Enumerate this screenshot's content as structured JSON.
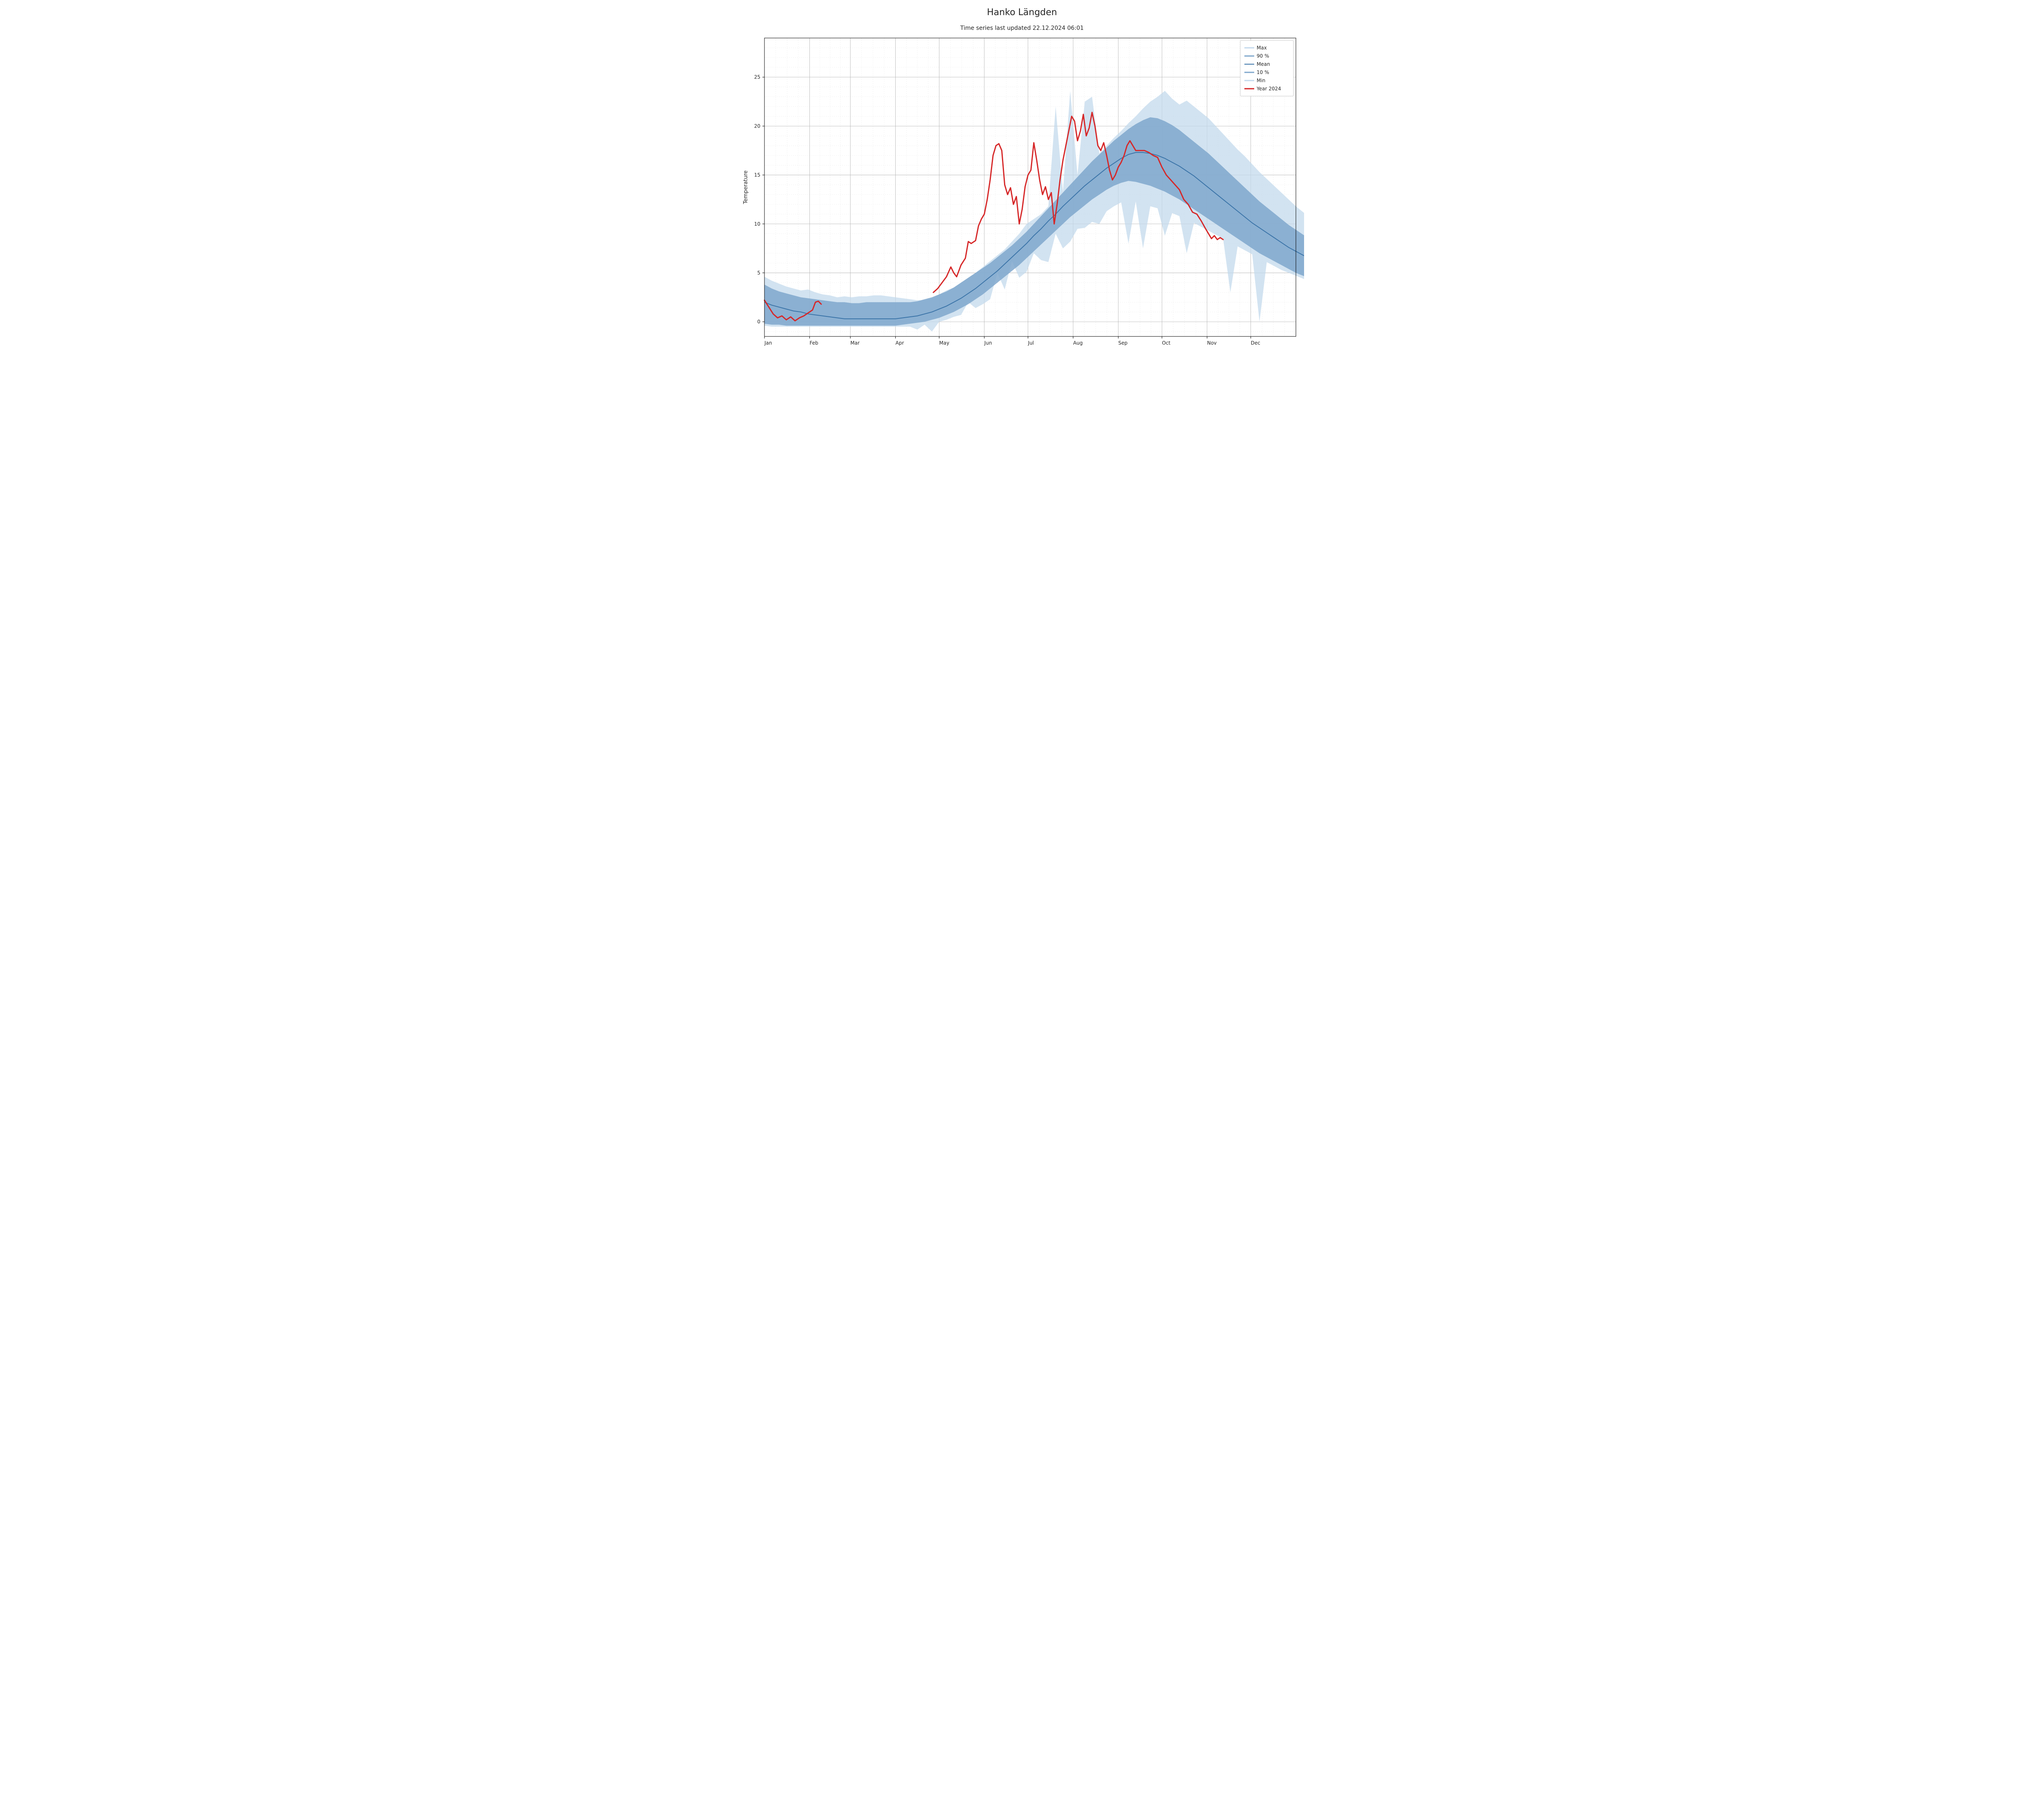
{
  "title": "Hanko Längden",
  "subtitle": "Time series last updated 22.12.2024 06:01",
  "ylabel": "Temperature",
  "chart": {
    "type": "line-with-bands",
    "background_color": "#ffffff",
    "grid": {
      "major_color": "#b0b0b0",
      "minor_color": "#e0e0e0",
      "major_width": 0.8,
      "minor_width": 0.5,
      "minor_dash": "2,3"
    },
    "axes": {
      "line_color": "#000000",
      "line_width": 1
    },
    "ylim": [
      -1.5,
      29
    ],
    "yticks_major": [
      0,
      5,
      10,
      15,
      20,
      25
    ],
    "yticks_minor_step": 1,
    "xlim": [
      0,
      365
    ],
    "xticks_major": [
      {
        "pos": 0,
        "label": "Jan"
      },
      {
        "pos": 31,
        "label": "Feb"
      },
      {
        "pos": 59,
        "label": "Mar"
      },
      {
        "pos": 90,
        "label": "Apr"
      },
      {
        "pos": 120,
        "label": "May"
      },
      {
        "pos": 151,
        "label": "Jun"
      },
      {
        "pos": 181,
        "label": "Jul"
      },
      {
        "pos": 212,
        "label": "Aug"
      },
      {
        "pos": 243,
        "label": "Sep"
      },
      {
        "pos": 273,
        "label": "Oct"
      },
      {
        "pos": 304,
        "label": "Nov"
      },
      {
        "pos": 334,
        "label": "Dec"
      }
    ],
    "legend": {
      "position": "upper-right",
      "items": [
        {
          "label": "Max",
          "color": "#c3d9ec",
          "kind": "fill"
        },
        {
          "label": "90 %",
          "color": "#7fa7cc",
          "kind": "fill"
        },
        {
          "label": "Mean",
          "color": "#3b74a8",
          "kind": "line",
          "width": 2
        },
        {
          "label": "10 %",
          "color": "#7fa7cc",
          "kind": "fill"
        },
        {
          "label": "Min",
          "color": "#c3d9ec",
          "kind": "fill"
        },
        {
          "label": "Year 2024",
          "color": "#d62728",
          "kind": "line",
          "width": 3
        }
      ]
    },
    "colors": {
      "fill_outer": "#c3d9ec",
      "fill_inner": "#7fa7cc",
      "mean_line": "#3b74a8",
      "year_line": "#d62728"
    },
    "series": {
      "x_step": 5,
      "max": [
        4.6,
        4.2,
        3.9,
        3.6,
        3.4,
        3.2,
        3.3,
        3.0,
        2.8,
        2.7,
        2.5,
        2.6,
        2.5,
        2.6,
        2.6,
        2.7,
        2.7,
        2.6,
        2.5,
        2.4,
        2.3,
        2.2,
        2.2,
        2.4,
        2.8,
        3.2,
        3.5,
        4.0,
        4.5,
        5.0,
        5.6,
        6.2,
        6.8,
        7.4,
        8.2,
        9.0,
        10.0,
        10.5,
        11.0,
        11.8,
        12.5,
        13.3,
        14.1,
        15.0,
        15.8,
        16.5,
        17.2,
        18.0,
        18.8,
        19.5,
        20.3,
        21.0,
        21.8,
        22.5,
        23.0,
        23.6,
        22.8,
        22.2,
        22.6,
        22.0,
        21.4,
        20.8,
        20.0,
        19.2,
        18.4,
        17.6,
        16.9,
        16.1,
        15.3,
        14.6,
        13.9,
        13.2,
        12.5,
        11.8,
        11.2,
        10.6,
        10.0,
        9.4,
        8.8,
        8.3,
        7.8,
        7.3,
        6.8,
        6.4,
        6.0,
        5.6,
        5.2,
        4.9,
        4.6,
        4.3,
        4.0,
        3.7,
        3.5
      ],
      "p90": [
        3.8,
        3.4,
        3.1,
        2.9,
        2.7,
        2.5,
        2.4,
        2.3,
        2.2,
        2.1,
        2.0,
        2.0,
        1.9,
        1.9,
        2.0,
        2.0,
        2.0,
        2.0,
        2.0,
        2.0,
        2.0,
        2.1,
        2.3,
        2.5,
        2.8,
        3.1,
        3.5,
        4.0,
        4.5,
        5.0,
        5.5,
        6.0,
        6.6,
        7.2,
        7.8,
        8.5,
        9.2,
        10.0,
        10.8,
        11.6,
        12.4,
        13.2,
        14.0,
        14.8,
        15.6,
        16.4,
        17.1,
        17.8,
        18.5,
        19.1,
        19.7,
        20.2,
        20.6,
        20.9,
        20.8,
        20.5,
        20.1,
        19.6,
        19.0,
        18.4,
        17.8,
        17.2,
        16.5,
        15.8,
        15.1,
        14.4,
        13.7,
        13.0,
        12.3,
        11.7,
        11.1,
        10.5,
        9.9,
        9.4,
        8.9,
        8.4,
        7.9,
        7.5,
        7.1,
        6.7,
        6.3,
        6.0,
        5.7,
        5.4,
        5.1,
        4.8,
        4.5,
        4.3,
        4.1,
        3.9,
        3.7,
        3.5,
        3.3
      ],
      "mean": [
        2.0,
        1.7,
        1.5,
        1.3,
        1.1,
        1.0,
        0.8,
        0.7,
        0.6,
        0.5,
        0.4,
        0.3,
        0.3,
        0.3,
        0.3,
        0.3,
        0.3,
        0.3,
        0.3,
        0.4,
        0.5,
        0.6,
        0.8,
        1.0,
        1.3,
        1.6,
        2.0,
        2.4,
        2.9,
        3.4,
        4.0,
        4.6,
        5.2,
        5.9,
        6.6,
        7.3,
        8.0,
        8.8,
        9.5,
        10.3,
        11.0,
        11.8,
        12.5,
        13.2,
        13.9,
        14.5,
        15.1,
        15.7,
        16.2,
        16.7,
        17.1,
        17.3,
        17.3,
        17.2,
        17.0,
        16.7,
        16.3,
        15.9,
        15.4,
        14.9,
        14.3,
        13.7,
        13.1,
        12.5,
        11.9,
        11.3,
        10.7,
        10.1,
        9.6,
        9.1,
        8.6,
        8.1,
        7.6,
        7.2,
        6.8,
        6.4,
        6.0,
        5.7,
        5.4,
        5.1,
        4.8,
        4.5,
        4.3,
        4.1,
        3.9,
        3.7,
        3.5,
        3.3,
        3.2,
        3.1,
        3.0,
        2.9,
        2.8
      ],
      "p10": [
        -0.2,
        -0.3,
        -0.3,
        -0.4,
        -0.4,
        -0.4,
        -0.4,
        -0.4,
        -0.4,
        -0.4,
        -0.4,
        -0.4,
        -0.4,
        -0.4,
        -0.4,
        -0.4,
        -0.4,
        -0.4,
        -0.4,
        -0.3,
        -0.2,
        -0.1,
        0.0,
        0.2,
        0.4,
        0.7,
        1.0,
        1.4,
        1.8,
        2.3,
        2.8,
        3.4,
        4.0,
        4.6,
        5.2,
        5.8,
        6.5,
        7.2,
        7.9,
        8.6,
        9.3,
        10.0,
        10.7,
        11.3,
        11.9,
        12.5,
        13.0,
        13.5,
        13.9,
        14.2,
        14.4,
        14.3,
        14.1,
        13.9,
        13.6,
        13.3,
        12.9,
        12.5,
        12.0,
        11.5,
        11.0,
        10.5,
        10.0,
        9.5,
        9.0,
        8.5,
        8.0,
        7.5,
        7.0,
        6.6,
        6.2,
        5.8,
        5.4,
        5.0,
        4.7,
        4.4,
        4.1,
        3.8,
        3.5,
        3.3,
        3.1,
        2.9,
        2.7,
        2.5,
        2.3,
        2.1,
        1.9,
        1.7,
        1.5,
        1.3,
        1.1,
        0.9,
        0.7
      ],
      "min": [
        -0.4,
        -0.5,
        -0.5,
        -0.5,
        -0.5,
        -0.5,
        -0.5,
        -0.5,
        -0.5,
        -0.5,
        -0.5,
        -0.5,
        -0.5,
        -0.5,
        -0.5,
        -0.5,
        -0.5,
        -0.5,
        -0.5,
        -0.5,
        -0.5,
        -0.4,
        -0.3,
        -0.2,
        0.0,
        0.2,
        0.4,
        0.7,
        1.0,
        1.4,
        1.8,
        2.3,
        2.8,
        3.3,
        3.9,
        4.5,
        5.1,
        5.7,
        6.3,
        6.1,
        6.8,
        7.5,
        8.2,
        8.9,
        9.6,
        10.2,
        10.8,
        11.3,
        11.8,
        12.2,
        12.5,
        12.3,
        12.0,
        11.8,
        11.6,
        11.4,
        11.1,
        10.8,
        10.5,
        10.1,
        9.7,
        9.3,
        8.9,
        8.5,
        8.1,
        7.7,
        7.3,
        6.9,
        6.5,
        6.1,
        5.7,
        5.3,
        5.0,
        4.7,
        4.4,
        4.1,
        3.8,
        3.5,
        3.2,
        2.9,
        2.6,
        2.4,
        2.2,
        2.0,
        1.8,
        1.6,
        1.4,
        1.2,
        1.0,
        0.8,
        0.6,
        0.4,
        0.2
      ],
      "min_spikes": [
        {
          "x": 105,
          "y": -0.8
        },
        {
          "x": 115,
          "y": -1.0
        },
        {
          "x": 128,
          "y": 0.5
        },
        {
          "x": 140,
          "y": 2.0
        },
        {
          "x": 160,
          "y": 5.0
        },
        {
          "x": 172,
          "y": 6.2
        },
        {
          "x": 185,
          "y": 7.0
        },
        {
          "x": 200,
          "y": 9.0
        },
        {
          "x": 215,
          "y": 9.5
        },
        {
          "x": 228,
          "y": 10.0
        },
        {
          "x": 252,
          "y": 8.0
        },
        {
          "x": 260,
          "y": 7.5
        },
        {
          "x": 275,
          "y": 8.8
        },
        {
          "x": 290,
          "y": 7.0
        },
        {
          "x": 320,
          "y": 3.0
        },
        {
          "x": 340,
          "y": 0.0
        }
      ],
      "max_spikes": [
        {
          "x": 200,
          "y": 22.0
        },
        {
          "x": 210,
          "y": 23.6
        },
        {
          "x": 218,
          "y": 22.5
        },
        {
          "x": 225,
          "y": 23.0
        }
      ]
    },
    "year2024": {
      "points": [
        [
          0,
          2.2
        ],
        [
          3,
          1.5
        ],
        [
          6,
          0.8
        ],
        [
          9,
          0.4
        ],
        [
          12,
          0.6
        ],
        [
          15,
          0.2
        ],
        [
          18,
          0.5
        ],
        [
          21,
          0.1
        ],
        [
          24,
          0.4
        ],
        [
          27,
          0.6
        ],
        [
          30,
          0.9
        ],
        [
          33,
          1.2
        ],
        [
          35,
          2.0
        ],
        [
          37,
          2.1
        ],
        [
          39,
          1.8
        ]
      ],
      "points2": [
        [
          116,
          3.0
        ],
        [
          119,
          3.4
        ],
        [
          122,
          4.0
        ],
        [
          125,
          4.6
        ],
        [
          128,
          5.6
        ],
        [
          130,
          5.0
        ],
        [
          132,
          4.6
        ],
        [
          135,
          5.8
        ],
        [
          138,
          6.5
        ],
        [
          140,
          8.2
        ],
        [
          142,
          8.0
        ],
        [
          145,
          8.3
        ],
        [
          147,
          9.8
        ],
        [
          149,
          10.5
        ],
        [
          151,
          11.0
        ],
        [
          153,
          12.5
        ],
        [
          155,
          14.5
        ],
        [
          157,
          17.0
        ],
        [
          159,
          18.0
        ],
        [
          161,
          18.2
        ],
        [
          163,
          17.5
        ],
        [
          165,
          14.0
        ],
        [
          167,
          13.0
        ],
        [
          169,
          13.7
        ],
        [
          171,
          12.0
        ],
        [
          173,
          12.8
        ],
        [
          175,
          10.0
        ],
        [
          177,
          11.5
        ],
        [
          179,
          13.8
        ],
        [
          181,
          15.0
        ],
        [
          183,
          15.5
        ],
        [
          185,
          18.3
        ],
        [
          187,
          16.5
        ],
        [
          189,
          14.5
        ],
        [
          191,
          13.0
        ],
        [
          193,
          13.8
        ],
        [
          195,
          12.5
        ],
        [
          197,
          13.2
        ],
        [
          199,
          10.0
        ],
        [
          201,
          12.0
        ],
        [
          203,
          14.5
        ],
        [
          205,
          16.5
        ],
        [
          207,
          18.0
        ],
        [
          209,
          19.5
        ],
        [
          211,
          21.0
        ],
        [
          213,
          20.5
        ],
        [
          215,
          18.5
        ],
        [
          217,
          19.5
        ],
        [
          219,
          21.2
        ],
        [
          221,
          19.0
        ],
        [
          223,
          19.8
        ],
        [
          225,
          21.4
        ],
        [
          227,
          20.0
        ],
        [
          229,
          18.0
        ],
        [
          231,
          17.5
        ],
        [
          233,
          18.3
        ],
        [
          235,
          17.0
        ],
        [
          237,
          15.5
        ],
        [
          239,
          14.5
        ],
        [
          241,
          15.0
        ],
        [
          243,
          15.8
        ],
        [
          245,
          16.3
        ],
        [
          247,
          17.0
        ],
        [
          249,
          18.0
        ],
        [
          251,
          18.5
        ],
        [
          253,
          18.0
        ],
        [
          255,
          17.5
        ],
        [
          258,
          17.5
        ],
        [
          261,
          17.5
        ],
        [
          264,
          17.3
        ],
        [
          267,
          17.0
        ],
        [
          270,
          16.8
        ],
        [
          273,
          15.8
        ],
        [
          276,
          15.0
        ],
        [
          279,
          14.5
        ],
        [
          282,
          14.0
        ],
        [
          285,
          13.5
        ],
        [
          288,
          12.5
        ],
        [
          291,
          12.0
        ],
        [
          294,
          11.2
        ],
        [
          297,
          11.0
        ],
        [
          300,
          10.3
        ],
        [
          303,
          9.5
        ],
        [
          305,
          9.0
        ],
        [
          307,
          8.5
        ],
        [
          309,
          8.8
        ],
        [
          311,
          8.4
        ],
        [
          313,
          8.6
        ],
        [
          315,
          8.4
        ]
      ]
    }
  }
}
